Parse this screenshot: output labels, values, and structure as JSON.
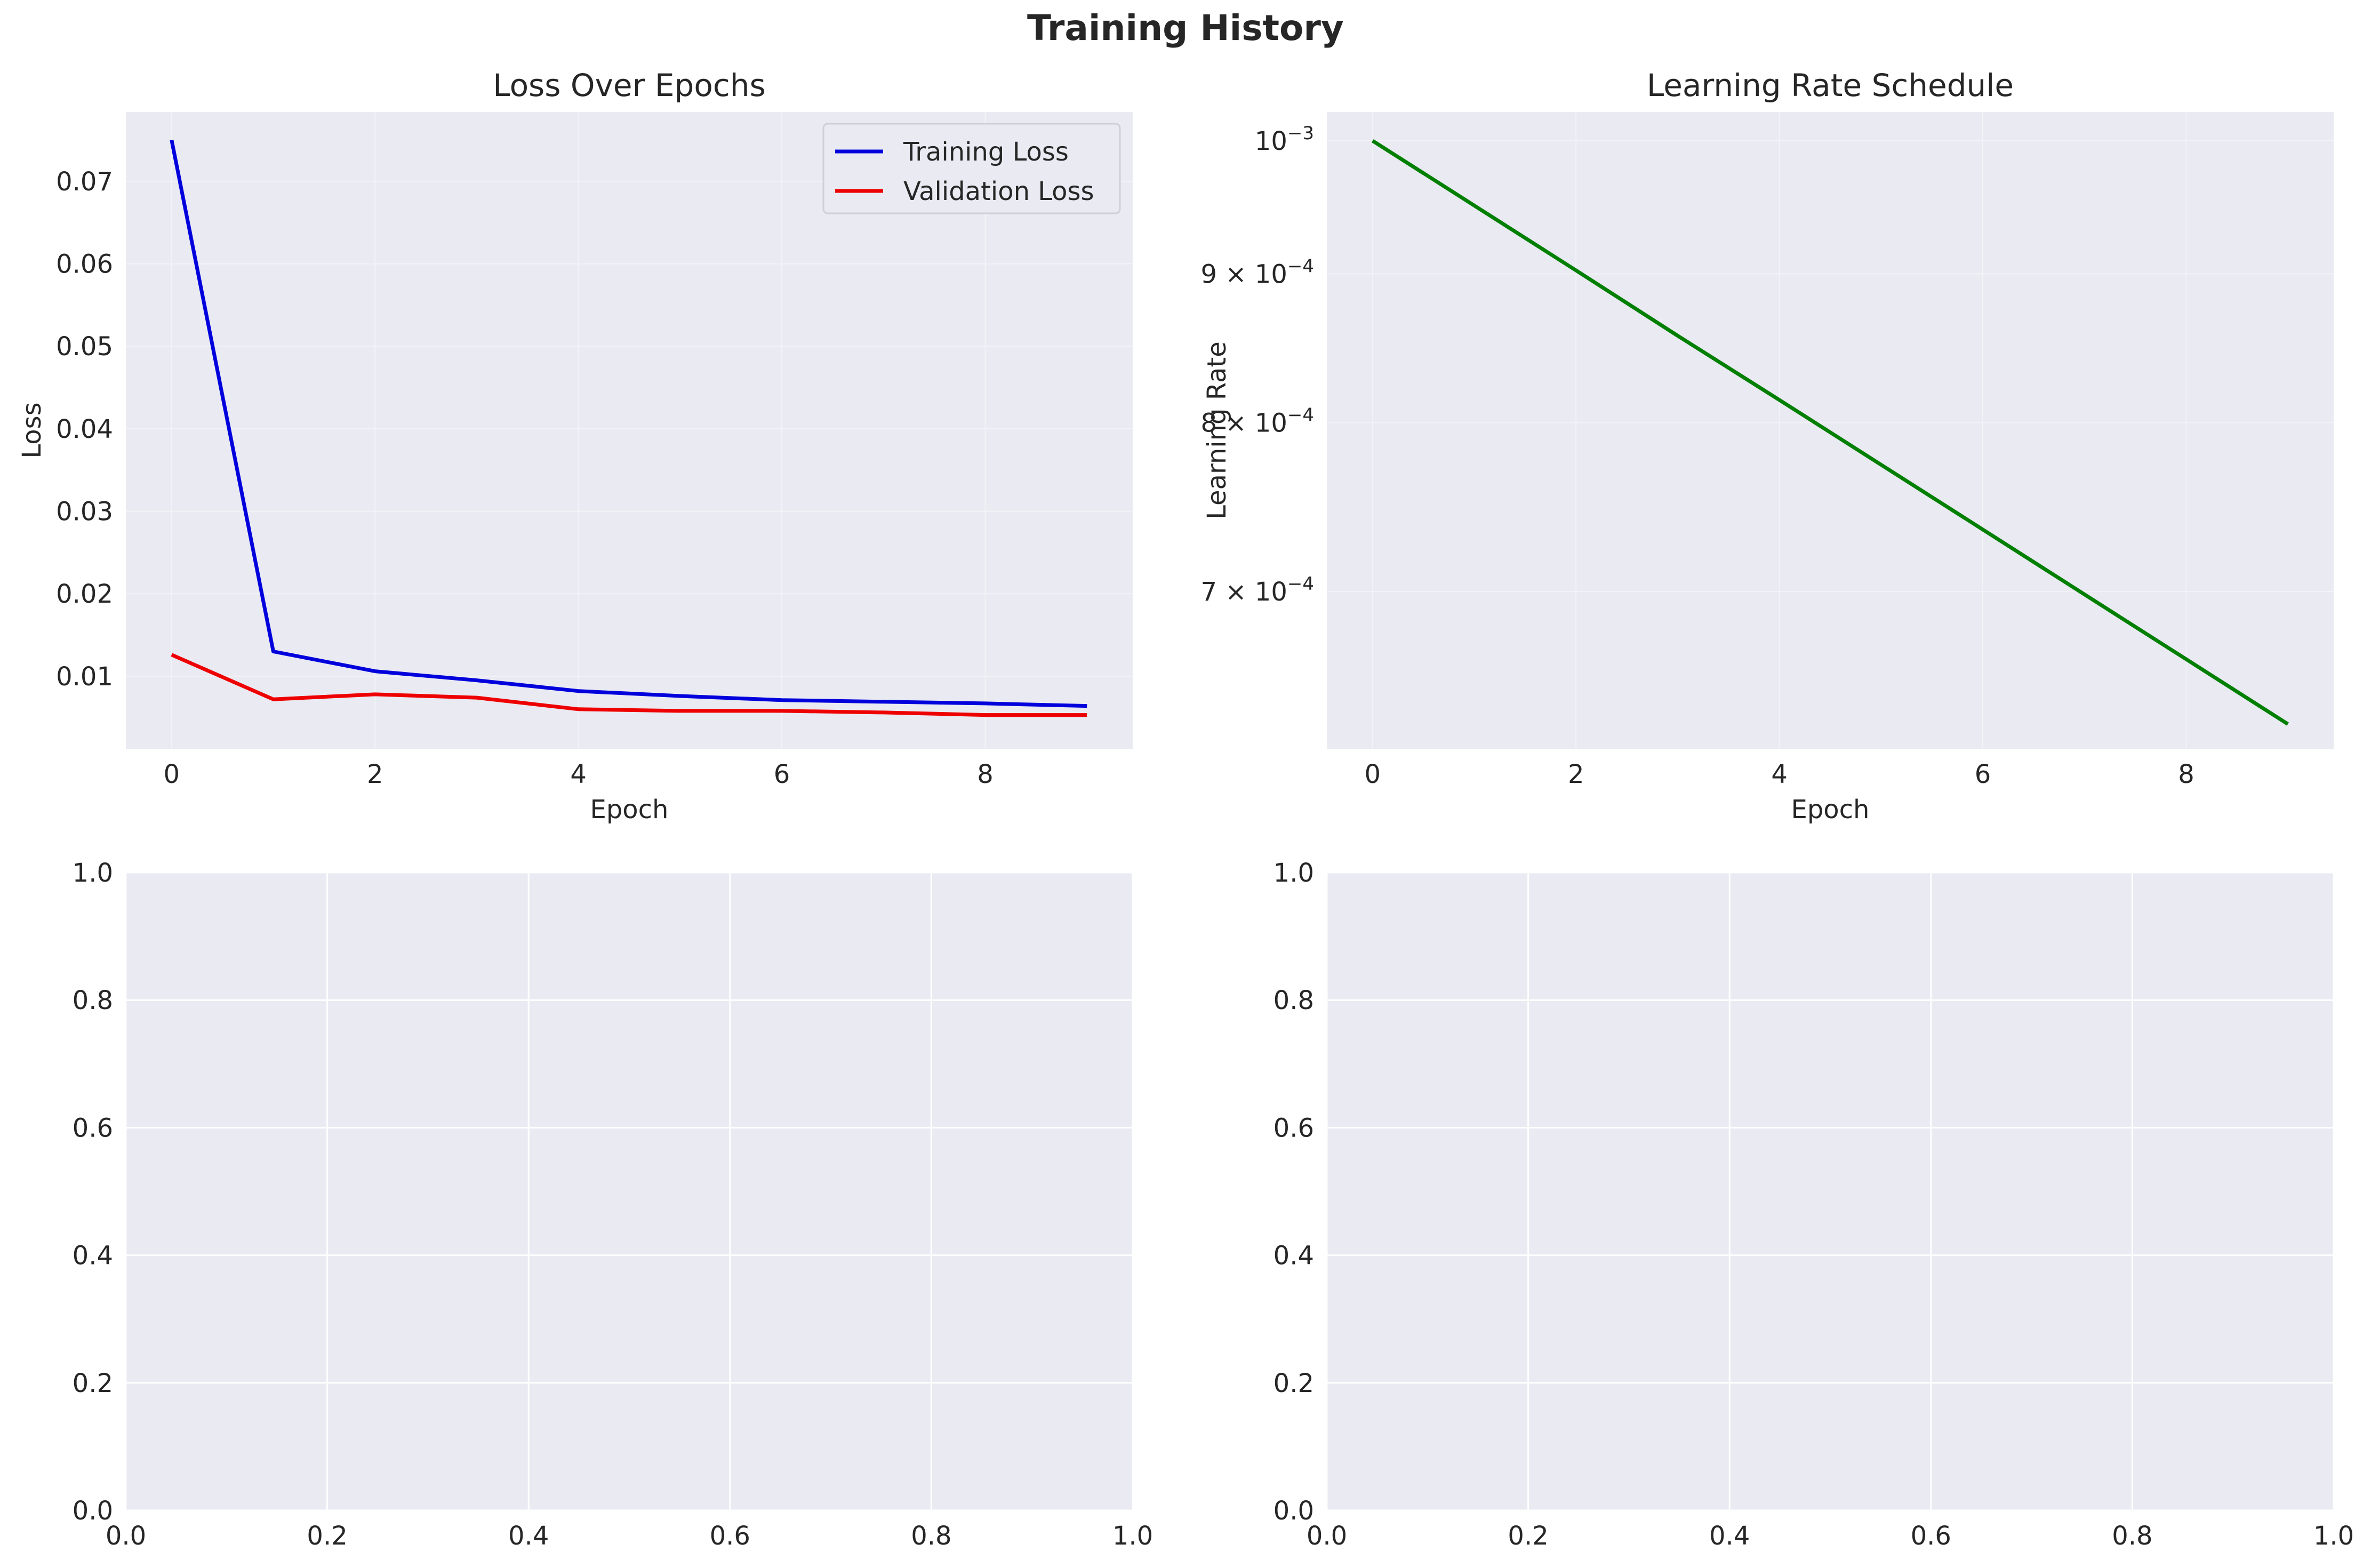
{
  "figure": {
    "title": "Training History"
  },
  "chart_data": [
    {
      "type": "line",
      "title": "Loss Over Epochs",
      "xlabel": "Epoch",
      "ylabel": "Loss",
      "xlim": [
        -0.45,
        9.45
      ],
      "ylim": [
        0.0012,
        0.0784
      ],
      "x_ticks": [
        0,
        2,
        4,
        6,
        8
      ],
      "y_ticks": [
        0.01,
        0.02,
        0.03,
        0.04,
        0.05,
        0.06,
        0.07
      ],
      "y_tick_labels": [
        "0.01",
        "0.02",
        "0.03",
        "0.04",
        "0.05",
        "0.06",
        "0.07"
      ],
      "grid": "faint",
      "legend": "top-right",
      "x": [
        0,
        1,
        2,
        3,
        4,
        5,
        6,
        7,
        8,
        9
      ],
      "series": [
        {
          "name": "Training Loss",
          "color": "#0000dd",
          "values": [
            0.075,
            0.013,
            0.0106,
            0.0095,
            0.0082,
            0.0076,
            0.0071,
            0.0069,
            0.0067,
            0.0064
          ]
        },
        {
          "name": "Validation Loss",
          "color": "#ee0000",
          "values": [
            0.0126,
            0.0072,
            0.0078,
            0.0074,
            0.006,
            0.0058,
            0.0058,
            0.0056,
            0.0053,
            0.0053
          ]
        }
      ]
    },
    {
      "type": "line",
      "title": "Learning Rate Schedule",
      "xlabel": "Epoch",
      "ylabel": "Learning Rate",
      "yscale": "log",
      "xlim": [
        -0.45,
        9.45
      ],
      "ylim": [
        0.000618,
        0.001023
      ],
      "x_ticks": [
        0,
        2,
        4,
        6,
        8
      ],
      "y_ticks": [
        0.0007,
        0.0008,
        0.0009,
        0.001
      ],
      "y_tick_labels": [
        {
          "mantissa": "7 × 10",
          "exponent": "−4"
        },
        {
          "mantissa": "8 × 10",
          "exponent": "−4"
        },
        {
          "mantissa": "9 × 10",
          "exponent": "−4"
        },
        {
          "mantissa": "10",
          "exponent": "−3"
        }
      ],
      "grid": "faint",
      "x": [
        0,
        1,
        2,
        3,
        4,
        5,
        6,
        7,
        8,
        9
      ],
      "series": [
        {
          "color": "#007f00",
          "values": [
            0.001,
            0.00095,
            0.0009025,
            0.000857,
            0.0008145,
            0.0007738,
            0.0007351,
            0.0006983,
            0.0006634,
            0.0006302
          ]
        }
      ]
    },
    {
      "type": "line",
      "title": "",
      "xlim": [
        0,
        1
      ],
      "ylim": [
        0,
        1
      ],
      "x_ticks": [
        0,
        0.2,
        0.4,
        0.6,
        0.8,
        1.0
      ],
      "x_tick_labels": [
        "0.0",
        "0.2",
        "0.4",
        "0.6",
        "0.8",
        "1.0"
      ],
      "y_ticks": [
        0,
        0.2,
        0.4,
        0.6,
        0.8,
        1.0
      ],
      "y_tick_labels": [
        "0.0",
        "0.2",
        "0.4",
        "0.6",
        "0.8",
        "1.0"
      ],
      "grid": "on",
      "series": []
    },
    {
      "type": "line",
      "title": "",
      "xlim": [
        0,
        1
      ],
      "ylim": [
        0,
        1
      ],
      "x_ticks": [
        0,
        0.2,
        0.4,
        0.6,
        0.8,
        1.0
      ],
      "x_tick_labels": [
        "0.0",
        "0.2",
        "0.4",
        "0.6",
        "0.8",
        "1.0"
      ],
      "y_ticks": [
        0,
        0.2,
        0.4,
        0.6,
        0.8,
        1.0
      ],
      "y_tick_labels": [
        "0.0",
        "0.2",
        "0.4",
        "0.6",
        "0.8",
        "1.0"
      ],
      "grid": "on",
      "series": []
    }
  ]
}
